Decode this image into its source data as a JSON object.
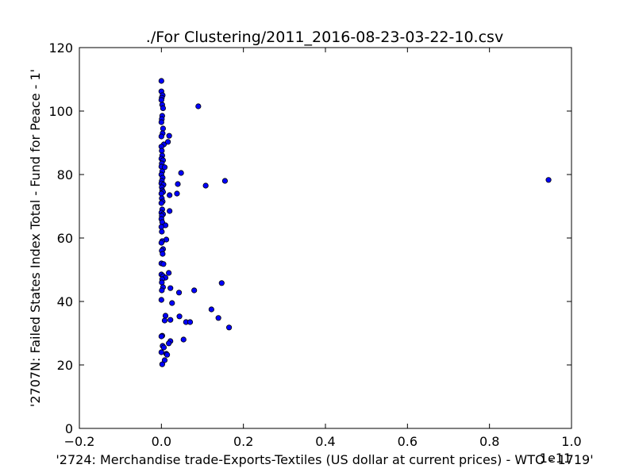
{
  "chart_data": {
    "type": "scatter",
    "title": "./For Clustering/2011_2016-08-23-03-22-10.csv",
    "xlabel": "'2724: Merchandise trade-Exports-Textiles (US dollar at current prices) - WTO - 1719'",
    "ylabel": "'2707N: Failed States Index Total - Fund for Peace - 1'",
    "x_offset_text": "1e11",
    "xlim": [
      -0.2,
      1.0
    ],
    "ylim": [
      0,
      120
    ],
    "x_ticks": [
      "−0.2",
      "0.0",
      "0.2",
      "0.4",
      "0.6",
      "0.8",
      "1.0"
    ],
    "x_tick_values": [
      -0.2,
      0.0,
      0.2,
      0.4,
      0.6,
      0.8,
      1.0
    ],
    "y_ticks": [
      "0",
      "20",
      "40",
      "60",
      "80",
      "100",
      "120"
    ],
    "y_tick_values": [
      0,
      20,
      40,
      60,
      80,
      100,
      120
    ],
    "grid": false,
    "legend": "none",
    "marker_color": "#0000ff",
    "points": [
      [
        0.0,
        109.5
      ],
      [
        0.0,
        106.2
      ],
      [
        0.003,
        105.0
      ],
      [
        0.001,
        104.2
      ],
      [
        0.0,
        103.5
      ],
      [
        0.002,
        102.0
      ],
      [
        0.004,
        100.9
      ],
      [
        0.09,
        101.5
      ],
      [
        0.002,
        98.5
      ],
      [
        0.001,
        97.5
      ],
      [
        0.0,
        96.5
      ],
      [
        0.004,
        94.5
      ],
      [
        0.003,
        93.0
      ],
      [
        0.019,
        92.2
      ],
      [
        0.0,
        92.0
      ],
      [
        0.006,
        89.5
      ],
      [
        0.016,
        90.3
      ],
      [
        0.0,
        88.8
      ],
      [
        0.001,
        87.5
      ],
      [
        0.002,
        86.0
      ],
      [
        0.0,
        85.0
      ],
      [
        0.004,
        84.5
      ],
      [
        0.001,
        83.5
      ],
      [
        0.0,
        82.5
      ],
      [
        0.008,
        82.3
      ],
      [
        0.002,
        81.0
      ],
      [
        0.048,
        80.5
      ],
      [
        0.0,
        80.0
      ],
      [
        0.003,
        79.0
      ],
      [
        0.001,
        78.0
      ],
      [
        0.155,
        78.0
      ],
      [
        0.944,
        78.3
      ],
      [
        0.0,
        77.2
      ],
      [
        0.04,
        77.0
      ],
      [
        0.005,
        76.8
      ],
      [
        0.108,
        76.5
      ],
      [
        0.001,
        76.0
      ],
      [
        0.002,
        75.0
      ],
      [
        0.004,
        74.5
      ],
      [
        0.0,
        74.0
      ],
      [
        0.038,
        74.0
      ],
      [
        0.02,
        73.5
      ],
      [
        0.001,
        72.5
      ],
      [
        0.003,
        71.5
      ],
      [
        0.0,
        71.0
      ],
      [
        0.002,
        69.0
      ],
      [
        0.02,
        68.5
      ],
      [
        0.0,
        68.0
      ],
      [
        0.004,
        67.5
      ],
      [
        0.001,
        67.0
      ],
      [
        0.0,
        66.0
      ],
      [
        0.002,
        65.0
      ],
      [
        0.01,
        64.0
      ],
      [
        0.0,
        63.5
      ],
      [
        0.001,
        62.0
      ],
      [
        0.012,
        59.5
      ],
      [
        0.002,
        59.0
      ],
      [
        0.0,
        58.5
      ],
      [
        0.004,
        56.5
      ],
      [
        0.001,
        56.0
      ],
      [
        0.003,
        55.0
      ],
      [
        0.0,
        52.0
      ],
      [
        0.005,
        51.8
      ],
      [
        0.018,
        49.0
      ],
      [
        0.0,
        48.5
      ],
      [
        0.004,
        48.0
      ],
      [
        0.01,
        47.5
      ],
      [
        0.002,
        47.0
      ],
      [
        0.001,
        46.0
      ],
      [
        0.147,
        45.8
      ],
      [
        0.004,
        44.5
      ],
      [
        0.022,
        44.2
      ],
      [
        0.001,
        43.5
      ],
      [
        0.08,
        43.5
      ],
      [
        0.043,
        42.8
      ],
      [
        0.0,
        40.5
      ],
      [
        0.026,
        39.5
      ],
      [
        0.122,
        37.5
      ],
      [
        0.01,
        35.5
      ],
      [
        0.044,
        35.3
      ],
      [
        0.139,
        34.8
      ],
      [
        0.022,
        34.2
      ],
      [
        0.008,
        34.0
      ],
      [
        0.06,
        33.5
      ],
      [
        0.07,
        33.5
      ],
      [
        0.165,
        31.8
      ],
      [
        0.002,
        29.2
      ],
      [
        0.0,
        29.0
      ],
      [
        0.054,
        28.0
      ],
      [
        0.022,
        27.5
      ],
      [
        0.018,
        26.8
      ],
      [
        0.003,
        26.0
      ],
      [
        0.006,
        25.5
      ],
      [
        0.0,
        24.0
      ],
      [
        0.012,
        23.5
      ],
      [
        0.014,
        23.2
      ],
      [
        0.008,
        21.5
      ],
      [
        0.002,
        20.2
      ]
    ]
  }
}
